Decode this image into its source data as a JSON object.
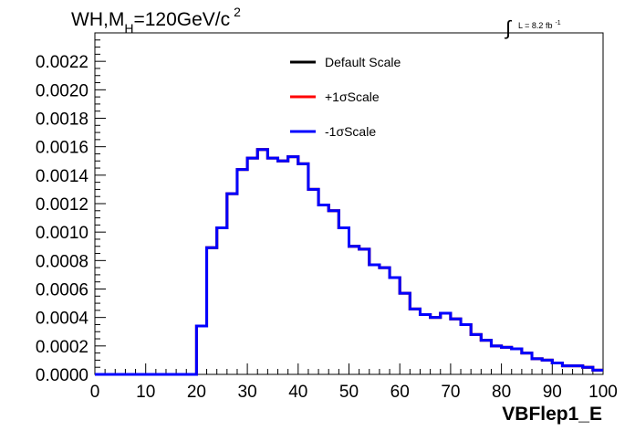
{
  "chart_data": {
    "type": "line",
    "title_main": "WH,M",
    "title_sub": "H",
    "title_rest": "=120GeV/c",
    "title_sup": "2",
    "lumi_prefix": "∫",
    "lumi_label": "L = 8.2 fb",
    "lumi_sup": "-1",
    "xlabel": "VBFlep1_E",
    "xlim": [
      0,
      100
    ],
    "ylim": [
      0,
      0.0024
    ],
    "xticks": [
      "0",
      "10",
      "20",
      "30",
      "40",
      "50",
      "60",
      "70",
      "80",
      "90",
      "100"
    ],
    "yticks": [
      "0.0000",
      "0.0002",
      "0.0004",
      "0.0006",
      "0.0008",
      "0.0010",
      "0.0012",
      "0.0014",
      "0.0016",
      "0.0018",
      "0.0020",
      "0.0022"
    ],
    "grid": false,
    "legend_position": "top-center",
    "bin_edges": [
      0,
      2,
      4,
      6,
      8,
      10,
      12,
      14,
      16,
      18,
      20,
      22,
      24,
      26,
      28,
      30,
      32,
      34,
      36,
      38,
      40,
      42,
      44,
      46,
      48,
      50,
      52,
      54,
      56,
      58,
      60,
      62,
      64,
      66,
      68,
      70,
      72,
      74,
      76,
      78,
      80,
      82,
      84,
      86,
      88,
      90,
      92,
      94,
      96,
      98,
      100
    ],
    "series": [
      {
        "name": "Default Scale",
        "color": "#000000",
        "values": [
          0,
          0,
          0,
          0,
          0,
          0,
          0,
          0,
          0,
          0,
          0.00034,
          0.00089,
          0.00103,
          0.00127,
          0.00144,
          0.00152,
          0.00158,
          0.00152,
          0.0015,
          0.00153,
          0.00148,
          0.0013,
          0.00119,
          0.00115,
          0.00103,
          0.0009,
          0.00088,
          0.00077,
          0.00075,
          0.00068,
          0.00057,
          0.00046,
          0.00042,
          0.0004,
          0.00043,
          0.00039,
          0.00035,
          0.00028,
          0.00024,
          0.0002,
          0.00019,
          0.00018,
          0.00015,
          0.00011,
          0.0001,
          8e-05,
          6e-05,
          6e-05,
          5e-05,
          3e-05
        ]
      },
      {
        "name": "+1σScale",
        "color": "#ff0000",
        "values": [
          0,
          0,
          0,
          0,
          0,
          0,
          0,
          0,
          0,
          0,
          0.00034,
          0.00089,
          0.00103,
          0.00127,
          0.00144,
          0.00152,
          0.00158,
          0.00152,
          0.0015,
          0.00153,
          0.00148,
          0.0013,
          0.00119,
          0.00115,
          0.00103,
          0.0009,
          0.00088,
          0.00077,
          0.00075,
          0.00068,
          0.00057,
          0.00046,
          0.00042,
          0.0004,
          0.00043,
          0.00039,
          0.00035,
          0.00028,
          0.00024,
          0.0002,
          0.00019,
          0.00018,
          0.00015,
          0.00011,
          0.0001,
          8e-05,
          6e-05,
          6e-05,
          5e-05,
          3e-05
        ]
      },
      {
        "name": "-1σScale",
        "color": "#0000ff",
        "values": [
          0,
          0,
          0,
          0,
          0,
          0,
          0,
          0,
          0,
          0,
          0.00034,
          0.00089,
          0.00103,
          0.00127,
          0.00144,
          0.00152,
          0.00158,
          0.00152,
          0.0015,
          0.00153,
          0.00148,
          0.0013,
          0.00119,
          0.00115,
          0.00103,
          0.0009,
          0.00088,
          0.00077,
          0.00075,
          0.00068,
          0.00057,
          0.00046,
          0.00042,
          0.0004,
          0.00043,
          0.00039,
          0.00035,
          0.00028,
          0.00024,
          0.0002,
          0.00019,
          0.00018,
          0.00015,
          0.00011,
          0.0001,
          8e-05,
          6e-05,
          6e-05,
          5e-05,
          3e-05
        ]
      }
    ]
  }
}
